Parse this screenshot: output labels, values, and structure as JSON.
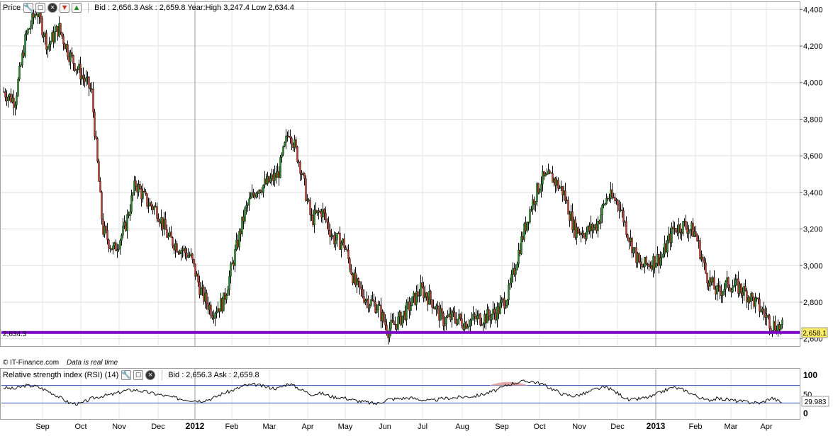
{
  "price_panel": {
    "title": "Price",
    "info": "Bid : 2,656.3 Ask : 2,659.8 Year:High 3,247.4 Low 2,634.4",
    "level_label": "2,634.3",
    "last_value": "2,658.1",
    "credit": "© IT-Finance.com",
    "credit_note": "Data is real time",
    "level_line_color": "#7a00c4"
  },
  "rsi_panel": {
    "title": "Relative strength index (RSI) (14)",
    "info": "Bid : 2,656.3 Ask : 2,659.8",
    "last_value": "29.983",
    "ticks": [
      "100",
      "50",
      "0"
    ]
  },
  "chart_data": [
    {
      "type": "candlestick",
      "ylim": [
        2560,
        4440
      ],
      "yticks": [
        "4,400",
        "4,200",
        "4,000",
        "3,800",
        "3,600",
        "3,400",
        "3,200",
        "3,000",
        "2,800",
        "2,600"
      ],
      "ytick_values": [
        4400,
        4200,
        4000,
        3800,
        3600,
        3400,
        3200,
        3000,
        2800,
        2600
      ],
      "xticks": [
        "Sep",
        "Oct",
        "Nov",
        "Dec",
        "2012",
        "Feb",
        "Mar",
        "Apr",
        "May",
        "Jun",
        "Jul",
        "Aug",
        "Sep",
        "Oct",
        "Nov",
        "Dec",
        "2013",
        "Feb",
        "Mar",
        "Apr"
      ],
      "grid": true,
      "up_color": "#1e8c1e",
      "down_color": "#c0392b",
      "closes": [
        [
          0,
          3950
        ],
        [
          1,
          3900
        ],
        [
          2,
          4250
        ],
        [
          3,
          4400
        ],
        [
          4,
          4200
        ],
        [
          5,
          4300
        ],
        [
          6,
          4150
        ],
        [
          7,
          4050
        ],
        [
          8,
          3950
        ],
        [
          9,
          3200
        ],
        [
          10,
          3080
        ],
        [
          11,
          3200
        ],
        [
          12,
          3450
        ],
        [
          13,
          3350
        ],
        [
          14,
          3300
        ],
        [
          15,
          3150
        ],
        [
          16,
          3100
        ],
        [
          17,
          3050
        ],
        [
          18,
          2850
        ],
        [
          19,
          2750
        ],
        [
          20,
          2800
        ],
        [
          21,
          3050
        ],
        [
          22,
          3300
        ],
        [
          23,
          3420
        ],
        [
          24,
          3450
        ],
        [
          25,
          3500
        ],
        [
          26,
          3750
        ],
        [
          27,
          3550
        ],
        [
          28,
          3250
        ],
        [
          29,
          3300
        ],
        [
          30,
          3150
        ],
        [
          31,
          3120
        ],
        [
          32,
          2900
        ],
        [
          33,
          2820
        ],
        [
          34,
          2780
        ],
        [
          35,
          2650
        ],
        [
          36,
          2700
        ],
        [
          37,
          2780
        ],
        [
          38,
          2870
        ],
        [
          39,
          2810
        ],
        [
          40,
          2700
        ],
        [
          41,
          2720
        ],
        [
          42,
          2690
        ],
        [
          43,
          2710
        ],
        [
          44,
          2720
        ],
        [
          45,
          2750
        ],
        [
          46,
          2850
        ],
        [
          47,
          3100
        ],
        [
          48,
          3320
        ],
        [
          49,
          3470
        ],
        [
          50,
          3480
        ],
        [
          51,
          3400
        ],
        [
          52,
          3200
        ],
        [
          53,
          3180
        ],
        [
          54,
          3220
        ],
        [
          55,
          3380
        ],
        [
          56,
          3350
        ],
        [
          57,
          3150
        ],
        [
          58,
          2990
        ],
        [
          59,
          3020
        ],
        [
          60,
          3050
        ],
        [
          61,
          3200
        ],
        [
          62,
          3220
        ],
        [
          63,
          3180
        ],
        [
          64,
          2950
        ],
        [
          65,
          2850
        ],
        [
          66,
          2900
        ],
        [
          67,
          2880
        ],
        [
          68,
          2830
        ],
        [
          69,
          2760
        ],
        [
          70,
          2680
        ],
        [
          71,
          2658
        ]
      ]
    },
    {
      "type": "line",
      "name": "Relative strength index (RSI) (14)",
      "ylim": [
        0,
        100
      ],
      "yticks": [
        "100",
        "50",
        "0"
      ],
      "reference_lines": [
        70,
        30
      ],
      "values": [
        65,
        62,
        70,
        68,
        58,
        45,
        30,
        28,
        40,
        46,
        50,
        58,
        60,
        55,
        50,
        45,
        40,
        37,
        35,
        40,
        52,
        60,
        70,
        72,
        66,
        63,
        75,
        62,
        50,
        52,
        44,
        42,
        36,
        32,
        28,
        38,
        40,
        42,
        38,
        35,
        40,
        42,
        44,
        46,
        52,
        60,
        72,
        78,
        80,
        74,
        62,
        50,
        46,
        52,
        62,
        66,
        52,
        36,
        40,
        44,
        56,
        66,
        60,
        48,
        36,
        40,
        38,
        34,
        32,
        30,
        42,
        29.983
      ]
    }
  ]
}
